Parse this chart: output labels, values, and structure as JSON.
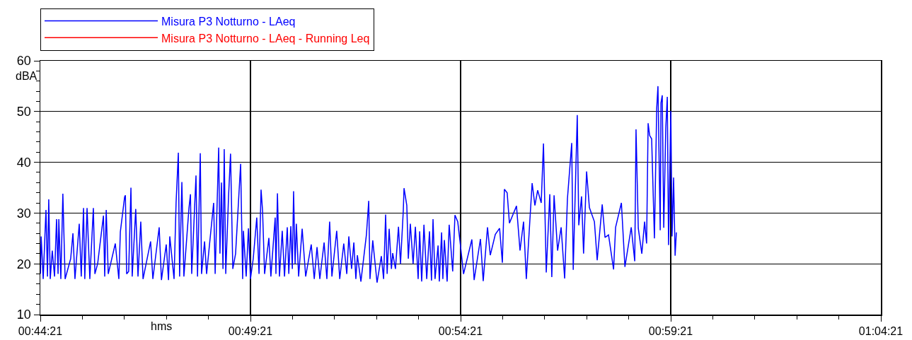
{
  "chart_data": {
    "type": "line",
    "xlabel": "hms",
    "ylabel": "dBA",
    "xlim": [
      0.739167,
      1.0725
    ],
    "xticks": [
      {
        "value": 0.739167,
        "label": "00:44:21"
      },
      {
        "value": 0.8225,
        "label": "00:49:21"
      },
      {
        "value": 0.905833,
        "label": "00:54:21"
      },
      {
        "value": 0.989167,
        "label": "00:59:21"
      },
      {
        "value": 1.0725,
        "label": "01:04:21"
      }
    ],
    "ylim": [
      10,
      60
    ],
    "yticks": [
      10,
      20,
      30,
      40,
      50,
      60
    ],
    "grid": true,
    "legend": "top",
    "marker": "none",
    "line_style": "solid",
    "series": [
      {
        "name": "Misura P3 Notturno - LAeq",
        "color": "#0000ff",
        "x": [
          0.7392,
          0.7395,
          0.7403,
          0.7414,
          0.742,
          0.7425,
          0.7431,
          0.7439,
          0.7448,
          0.7456,
          0.7462,
          0.7465,
          0.7473,
          0.7481,
          0.749,
          0.7512,
          0.7521,
          0.7529,
          0.7546,
          0.7554,
          0.7563,
          0.7568,
          0.7577,
          0.7588,
          0.7602,
          0.7608,
          0.7619,
          0.7642,
          0.7647,
          0.7653,
          0.7661,
          0.7689,
          0.7703,
          0.7709,
          0.7726,
          0.7729,
          0.7734,
          0.7742,
          0.7751,
          0.7756,
          0.777,
          0.7779,
          0.779,
          0.7799,
          0.7829,
          0.7838,
          0.7863,
          0.7872,
          0.7891,
          0.79,
          0.7905,
          0.7922,
          0.793,
          0.7939,
          0.7944,
          0.7953,
          0.7961,
          0.7981,
          0.7987,
          0.7992,
          0.8009,
          0.8015,
          0.8026,
          0.8031,
          0.8043,
          0.8051,
          0.8079,
          0.8085,
          0.8099,
          0.8104,
          0.811,
          0.8116,
          0.8121,
          0.8127,
          0.8138,
          0.8146,
          0.8155,
          0.8166,
          0.8186,
          0.8194,
          0.8197,
          0.8208,
          0.8217,
          0.8225,
          0.8236,
          0.825,
          0.8259,
          0.8267,
          0.8273,
          0.8281,
          0.8298,
          0.8306,
          0.8323,
          0.8326,
          0.8332,
          0.834,
          0.8351,
          0.836,
          0.8371,
          0.8377,
          0.8385,
          0.8391,
          0.8396,
          0.8402,
          0.8407,
          0.8416,
          0.843,
          0.8444,
          0.8466,
          0.8478,
          0.8489,
          0.85,
          0.8517,
          0.8528,
          0.8539,
          0.8548,
          0.8567,
          0.8579,
          0.8595,
          0.8607,
          0.8615,
          0.8626,
          0.8635,
          0.8643,
          0.8649,
          0.8663,
          0.8685,
          0.8694,
          0.8699,
          0.871,
          0.8727,
          0.8744,
          0.8753,
          0.8761,
          0.8767,
          0.8775,
          0.8784,
          0.8789,
          0.88,
          0.8812,
          0.882,
          0.8831,
          0.8834,
          0.8845,
          0.8851,
          0.8859,
          0.887,
          0.8879,
          0.889,
          0.8896,
          0.8904,
          0.8913,
          0.8924,
          0.8935,
          0.8943,
          0.8949,
          0.8957,
          0.8969,
          0.8974,
          0.8983,
          0.8988,
          0.8994,
          0.9005,
          0.9013,
          0.9027,
          0.9036,
          0.9047,
          0.9056,
          0.907,
          0.9103,
          0.9112,
          0.9137,
          0.9148,
          0.9165,
          0.9176,
          0.9196,
          0.9213,
          0.9224,
          0.9232,
          0.9243,
          0.9252,
          0.928,
          0.9294,
          0.9308,
          0.9319,
          0.9342,
          0.9353,
          0.9364,
          0.9378,
          0.9387,
          0.9398,
          0.9412,
          0.942,
          0.9429,
          0.9443,
          0.9457,
          0.9471,
          0.9482,
          0.9499,
          0.9505,
          0.9521,
          0.9527,
          0.9538,
          0.9546,
          0.9558,
          0.9569,
          0.9589,
          0.96,
          0.962,
          0.9631,
          0.9645,
          0.9665,
          0.9673,
          0.9696,
          0.971,
          0.9735,
          0.9749,
          0.9754,
          0.9763,
          0.9777,
          0.9788,
          0.9796,
          0.9802,
          0.9808,
          0.9816,
          0.9827,
          0.9836,
          0.9841,
          0.985,
          0.9853,
          0.9858,
          0.9864,
          0.9872,
          0.9878,
          0.9883,
          0.9892,
          0.9897,
          0.9903,
          0.9909,
          0.9914
        ],
        "values": [
          18,
          25.4,
          17,
          30.6,
          17.5,
          32.7,
          17,
          22.6,
          17.5,
          28.8,
          18,
          28.8,
          17,
          33.8,
          17,
          21,
          26,
          17,
          27.9,
          17.5,
          31,
          17,
          31,
          17,
          31,
          18,
          20,
          29.5,
          17.5,
          30.6,
          18,
          24,
          17,
          26.3,
          33.2,
          33.5,
          18,
          18.5,
          35,
          17.5,
          30.8,
          17.5,
          28.3,
          17,
          24.4,
          17,
          27.2,
          16.8,
          23.8,
          16.8,
          25.4,
          17,
          32,
          41.9,
          17.5,
          36.1,
          17.5,
          30.9,
          33.7,
          18,
          37.4,
          17.5,
          41.8,
          18,
          24.4,
          18,
          32,
          18,
          42.9,
          22,
          36,
          19,
          42.6,
          18,
          33.1,
          41.7,
          19,
          22,
          39.7,
          17,
          26.5,
          17.5,
          27,
          17,
          21,
          29.1,
          18,
          34.6,
          30.4,
          18,
          25.1,
          17.5,
          29.1,
          18,
          33.9,
          17.5,
          26.5,
          17.5,
          27.2,
          18,
          27.4,
          19,
          34.3,
          20,
          27.9,
          17.5,
          26.9,
          17.5,
          23.8,
          17,
          23.3,
          17,
          24.2,
          17,
          28.3,
          17.5,
          26.5,
          17,
          24,
          18,
          25.4,
          19,
          24.2,
          17,
          21.7,
          16.5,
          25.8,
          32.4,
          17,
          24.6,
          16.3,
          21.5,
          17,
          29.7,
          18,
          26.9,
          19,
          22.1,
          19,
          27.3,
          20,
          30.4,
          34.9,
          31.5,
          21,
          27.9,
          20,
          27.3,
          17,
          26.4,
          16.5,
          27.7,
          17,
          26.4,
          16.7,
          28.8,
          17,
          23.6,
          16.5,
          26.2,
          17,
          24.7,
          16.5,
          27.7,
          18.5,
          29.6,
          28.3,
          24.4,
          18,
          24.8,
          16.8,
          24.9,
          16.6,
          27.2,
          21.7,
          25.8,
          27,
          20.2,
          34.7,
          34,
          28,
          31.4,
          22.6,
          28.3,
          17,
          35.9,
          31.5,
          34.5,
          32,
          43.7,
          18.3,
          33.7,
          17.4,
          33.5,
          22.6,
          27.2,
          17.1,
          32.8,
          43.8,
          18.8,
          49.3,
          27.6,
          33.3,
          22,
          38.2,
          31.1,
          28.3,
          20.7,
          31.7,
          25.2,
          25.7,
          18.9,
          27.2,
          32,
          19.4,
          27.2,
          20.5,
          46.5,
          27,
          22,
          28.3,
          24,
          47.7,
          45.3,
          44.6,
          25,
          50.6,
          55,
          26.6,
          51.7,
          53.2,
          27.1,
          46.7,
          52.9,
          23.7,
          50.1,
          25.4,
          37,
          21.6,
          26.2
        ]
      },
      {
        "name": "Misura P3 Notturno - LAeq - Running Leq",
        "color": "#ff0000"
      }
    ]
  }
}
